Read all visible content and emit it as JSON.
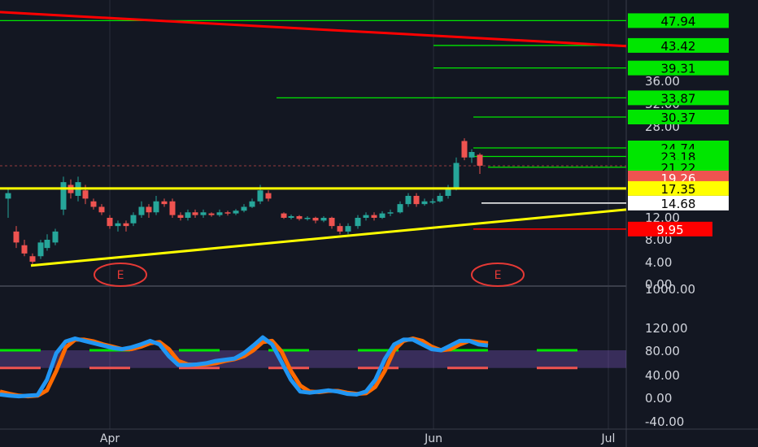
{
  "chart_data": [
    {
      "type": "candlestick",
      "x_labels": [
        "Apr",
        "Jun",
        "Jul"
      ],
      "y_axis_labels": [
        "36.00",
        "32.00",
        "28.00",
        "12.00",
        "8.00",
        "4.00",
        "0.00"
      ],
      "ylim": [
        0,
        49
      ],
      "price_tags": [
        {
          "value": "47.94",
          "color": "#00e600",
          "text_color": "#000000"
        },
        {
          "value": "43.42",
          "color": "#00e600",
          "text_color": "#000000"
        },
        {
          "value": "39.31",
          "color": "#00e600",
          "text_color": "#000000"
        },
        {
          "value": "33.87",
          "color": "#00e600",
          "text_color": "#000000"
        },
        {
          "value": "30.37",
          "color": "#00e600",
          "text_color": "#000000"
        },
        {
          "value": "24.74",
          "color": "#00e600",
          "text_color": "#000000"
        },
        {
          "value": "23.18",
          "color": "#00e600",
          "text_color": "#000000"
        },
        {
          "value": "21.22",
          "color": "#00e600",
          "text_color": "#000000"
        },
        {
          "value": "19.26",
          "color": "#ef5350",
          "text_color": "#ffffff"
        },
        {
          "value": "17.35",
          "color": "#ffff00",
          "text_color": "#000000"
        },
        {
          "value": "14.68",
          "color": "#ffffff",
          "text_color": "#000000"
        },
        {
          "value": "9.95",
          "color": "#ff0000",
          "text_color": "#ffffff"
        }
      ],
      "earnings_markers": [
        "E",
        "E"
      ],
      "colors": {
        "up": "#26a69a",
        "down": "#ef5350",
        "support": "#ffff00",
        "resistance": "#ff0000",
        "level": "#00e600"
      }
    },
    {
      "type": "line",
      "y_axis_labels": [
        "1000.00",
        "120.00",
        "80.00",
        "40.00",
        "0.00",
        "-40.00"
      ],
      "ylim": [
        -45,
        130
      ],
      "series": [
        {
          "color": "#2196f3",
          "values": [
            5,
            3,
            2,
            3,
            4,
            30,
            75,
            95,
            100,
            96,
            92,
            88,
            84,
            82,
            85,
            90,
            96,
            90,
            70,
            55,
            55,
            56,
            58,
            62,
            64,
            66,
            75,
            88,
            102,
            90,
            60,
            30,
            10,
            8,
            10,
            12,
            10,
            6,
            5,
            10,
            30,
            65,
            90,
            98,
            98,
            90,
            82,
            80,
            88,
            96,
            96,
            90,
            88
          ]
        },
        {
          "color": "#ff6a00",
          "values": [
            10,
            6,
            3,
            2,
            3,
            12,
            45,
            85,
            98,
            98,
            95,
            90,
            86,
            82,
            82,
            86,
            92,
            94,
            82,
            62,
            56,
            55,
            56,
            58,
            62,
            65,
            70,
            80,
            94,
            96,
            78,
            45,
            20,
            10,
            9,
            11,
            11,
            8,
            6,
            7,
            18,
            45,
            80,
            96,
            100,
            96,
            86,
            80,
            82,
            90,
            96,
            94,
            92
          ]
        }
      ],
      "bands": {
        "upper": 80,
        "lower": 50,
        "color": "#7e57c2"
      }
    }
  ]
}
